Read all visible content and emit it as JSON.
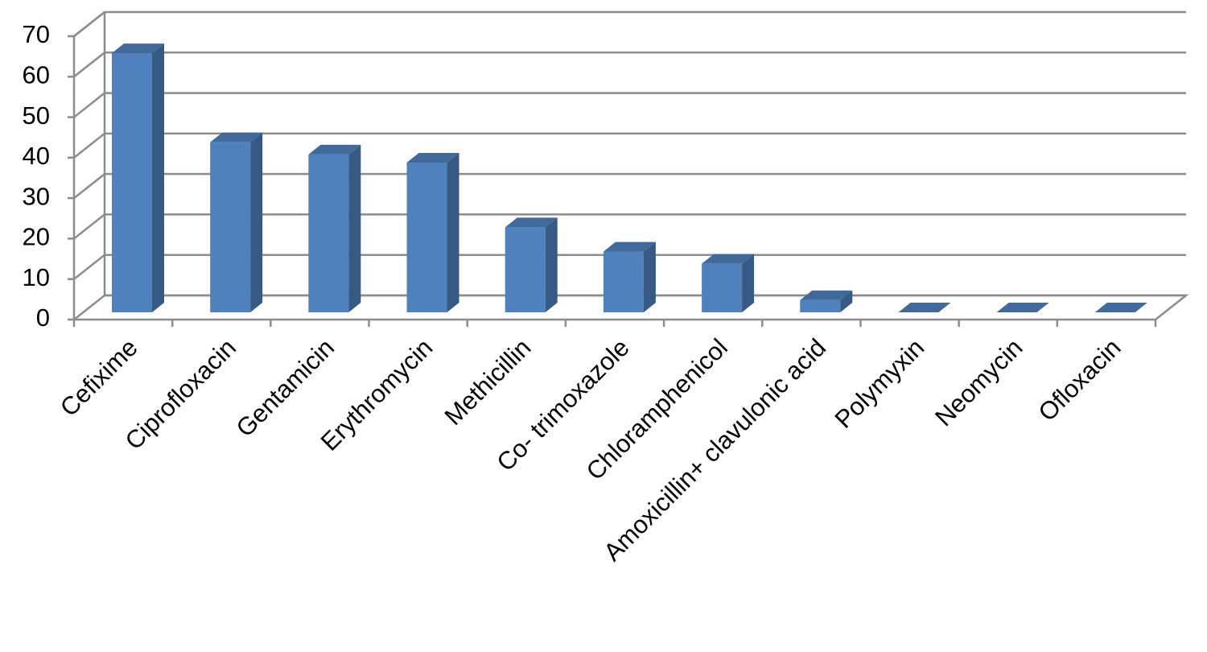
{
  "chart_data": {
    "type": "bar",
    "categories": [
      "Cefixime",
      "Ciprofloxacin",
      "Gentamicin",
      "Erythromycin",
      "Methicillin",
      "Co- trimoxazole",
      "Chloramphenicol",
      "Amoxicillin+ clavulonic acid",
      "Polymyxin",
      "Neomycin",
      "Ofloxacin"
    ],
    "values": [
      64,
      42,
      39,
      37,
      21,
      15,
      12,
      3,
      0,
      0,
      0
    ],
    "color": "#4f81bd",
    "ylim": [
      0,
      70
    ],
    "yticks": [
      0,
      10,
      20,
      30,
      40,
      50,
      60,
      70
    ],
    "grid": true
  }
}
